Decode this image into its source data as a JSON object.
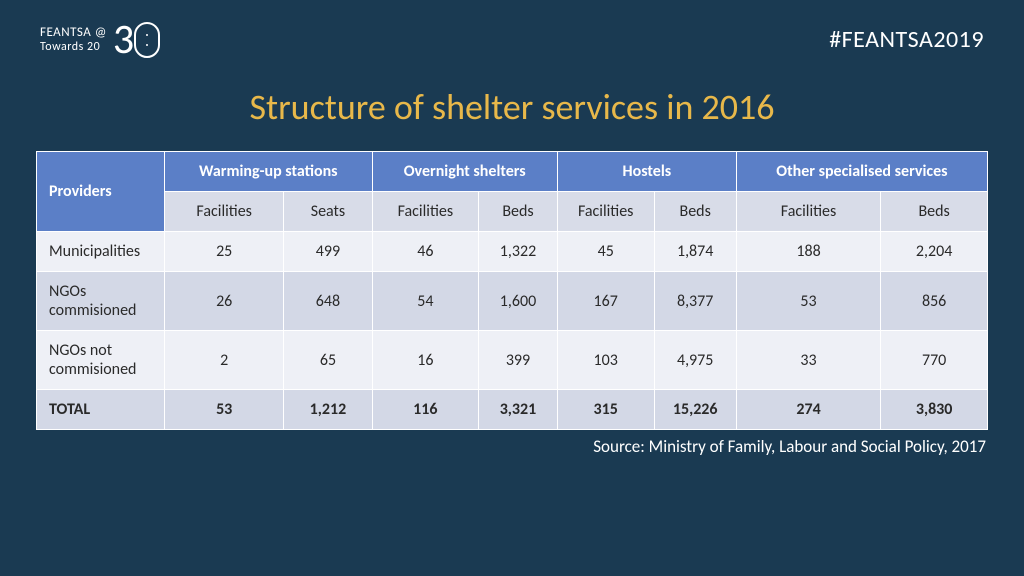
{
  "header": {
    "logo_line1": "FEANTSA @",
    "logo_line2": "Towards 20",
    "logo_number": "30",
    "hashtag": "#FEANTSA2019"
  },
  "title": "Structure of shelter services in 2016",
  "table": {
    "providers_label": "Providers",
    "groups": [
      {
        "label": "Warming-up stations",
        "sub": [
          "Facilities",
          "Seats"
        ]
      },
      {
        "label": "Overnight shelters",
        "sub": [
          "Facilities",
          "Beds"
        ]
      },
      {
        "label": "Hostels",
        "sub": [
          "Facilities",
          "Beds"
        ]
      },
      {
        "label": "Other specialised services",
        "sub": [
          "Facilities",
          "Beds"
        ]
      }
    ],
    "rows": [
      {
        "label": "Municipalities",
        "cells": [
          "25",
          "499",
          "46",
          "1,322",
          "45",
          "1,874",
          "188",
          "2,204"
        ]
      },
      {
        "label": "NGOs commisioned",
        "cells": [
          "26",
          "648",
          "54",
          "1,600",
          "167",
          "8,377",
          "53",
          "856"
        ]
      },
      {
        "label": "NGOs not commisioned",
        "cells": [
          "2",
          "65",
          "16",
          "399",
          "103",
          "4,975",
          "33",
          "770"
        ]
      }
    ],
    "total": {
      "label": "TOTAL",
      "cells": [
        "53",
        "1,212",
        "116",
        "3,321",
        "315",
        "15,226",
        "274",
        "3,830"
      ]
    }
  },
  "source": "Source: Ministry of Family, Labour and Social Policy, 2017",
  "colors": {
    "background": "#1a3a52",
    "title": "#e8b84a",
    "header_blue": "#5b7fc7",
    "row_light": "#eef0f6",
    "row_dark": "#d3d8e6",
    "sub_header": "#d8dce8",
    "border": "#ffffff",
    "text_dark": "#2a2a2a",
    "text_light": "#ffffff"
  },
  "typography": {
    "title_fontsize": 36,
    "hashtag_fontsize": 24,
    "table_fontsize": 16,
    "source_fontsize": 17,
    "font_family": "Calibri"
  }
}
